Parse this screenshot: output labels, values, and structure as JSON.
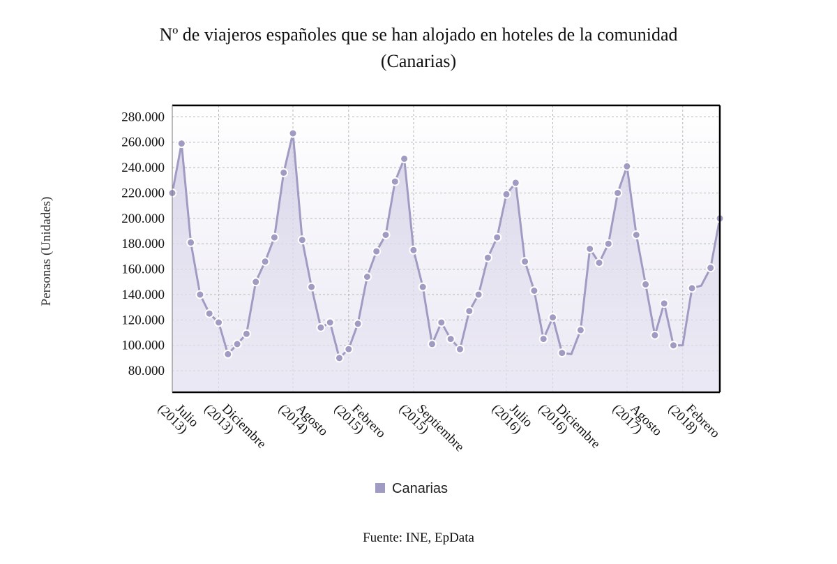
{
  "chart_data": {
    "type": "area",
    "title_lines": [
      "Nº de viajeros españoles que se han alojado en hoteles de la comunidad",
      "(Canarias)"
    ],
    "ylabel": "Personas (Unidades)",
    "ylim": [
      63000,
      289000
    ],
    "yticks": [
      80000,
      100000,
      120000,
      140000,
      160000,
      180000,
      200000,
      220000,
      240000,
      260000,
      280000
    ],
    "ytick_labels": [
      "80.000",
      "100.000",
      "120.000",
      "140.000",
      "160.000",
      "180.000",
      "200.000",
      "220.000",
      "240.000",
      "260.000",
      "280.000"
    ],
    "x_labels": [
      {
        "index": 0,
        "lines": [
          "Julio",
          "(2013)"
        ]
      },
      {
        "index": 5,
        "lines": [
          "Diciembre",
          "(2013)"
        ]
      },
      {
        "index": 13,
        "lines": [
          "Agosto",
          "(2014)"
        ]
      },
      {
        "index": 19,
        "lines": [
          "Febrero",
          "(2015)"
        ]
      },
      {
        "index": 26,
        "lines": [
          "Septiembre",
          "(2015)"
        ]
      },
      {
        "index": 36,
        "lines": [
          "Julio",
          "(2016)"
        ]
      },
      {
        "index": 41,
        "lines": [
          "Diciembre",
          "(2016)"
        ]
      },
      {
        "index": 49,
        "lines": [
          "Agosto",
          "(2017)"
        ]
      },
      {
        "index": 55,
        "lines": [
          "Febrero",
          "(2018)"
        ]
      }
    ],
    "grid": true,
    "legend_position": "bottom",
    "series": [
      {
        "name": "Canarias",
        "color": "#a09bc2",
        "values": [
          220000,
          259000,
          181000,
          140000,
          125000,
          118000,
          93000,
          101000,
          109000,
          150000,
          166000,
          185000,
          236000,
          267000,
          183000,
          146000,
          114000,
          118000,
          90000,
          97000,
          117000,
          154000,
          174000,
          187000,
          229000,
          247000,
          175000,
          146000,
          101000,
          118000,
          105000,
          97000,
          127000,
          140000,
          169000,
          185000,
          219000,
          228000,
          166000,
          143000,
          105000,
          122000,
          94000,
          93000,
          112000,
          176000,
          165000,
          180000,
          220000,
          241000,
          187000,
          148000,
          108000,
          133000,
          100000,
          100000,
          145000,
          147000,
          161000,
          200000
        ],
        "markers": [
          true,
          true,
          true,
          true,
          true,
          true,
          true,
          true,
          true,
          true,
          true,
          true,
          true,
          true,
          true,
          true,
          true,
          true,
          true,
          true,
          true,
          true,
          true,
          true,
          true,
          true,
          true,
          true,
          true,
          true,
          true,
          true,
          true,
          true,
          true,
          true,
          true,
          true,
          true,
          true,
          true,
          true,
          true,
          false,
          true,
          true,
          true,
          true,
          true,
          true,
          true,
          true,
          true,
          true,
          true,
          false,
          true,
          false,
          true,
          true
        ]
      }
    ],
    "source": "Fuente: INE, EpData"
  }
}
